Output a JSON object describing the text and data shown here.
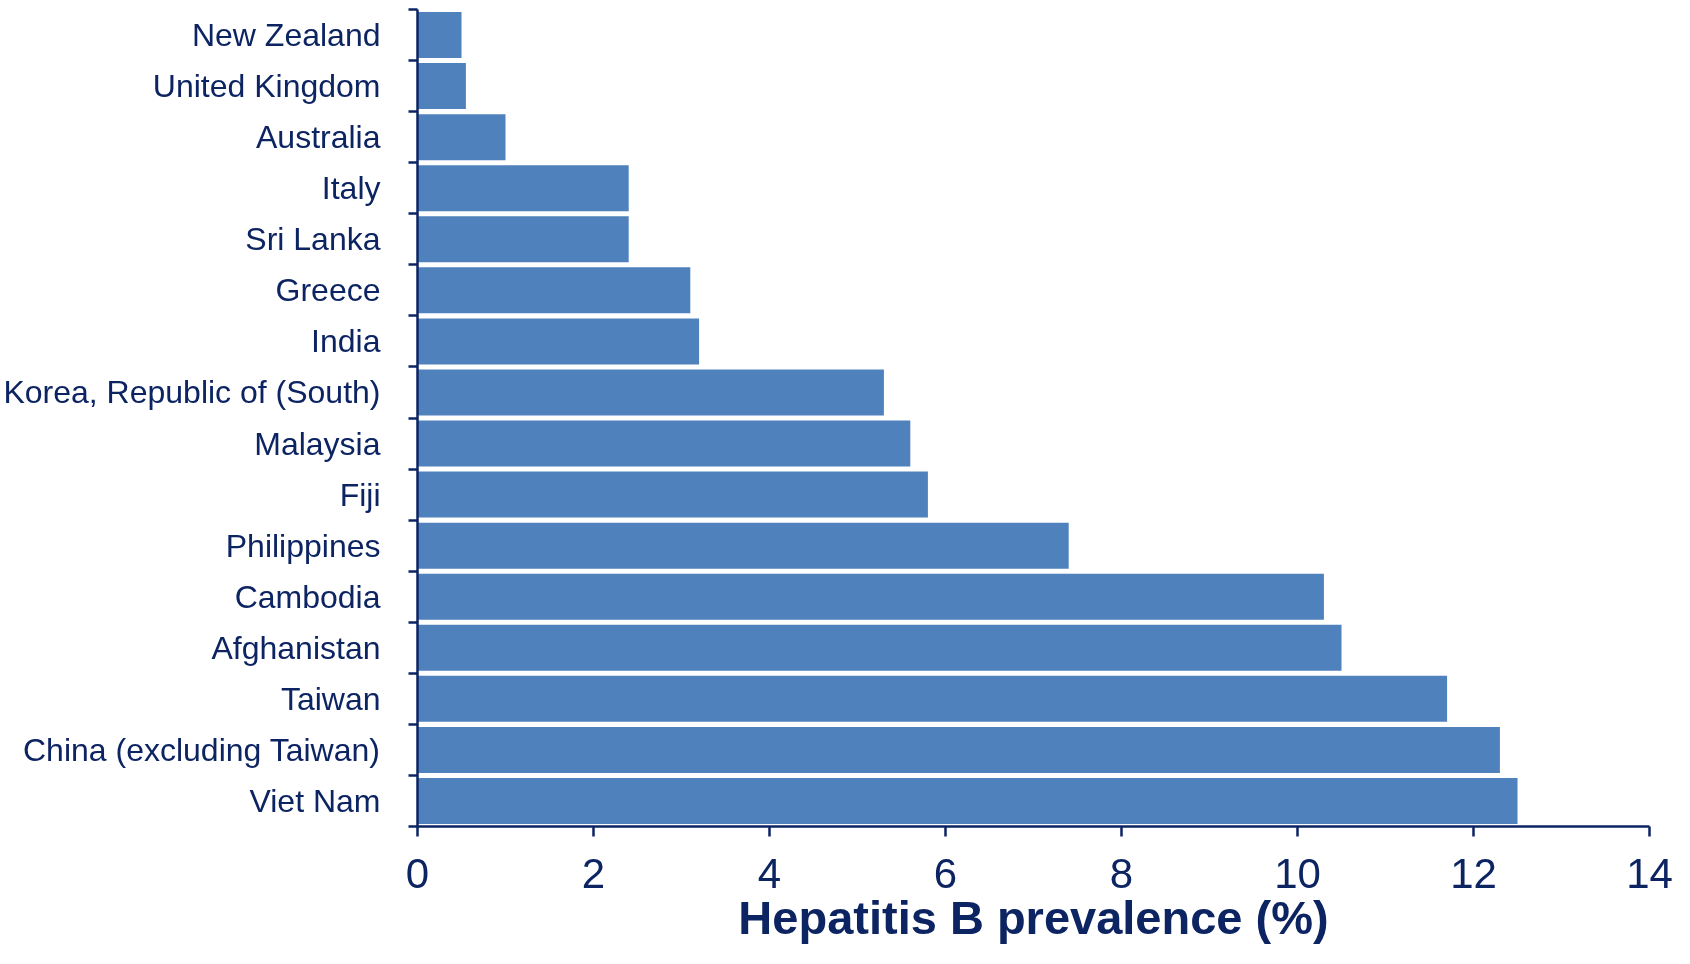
{
  "chart_data": {
    "type": "bar",
    "orientation": "horizontal",
    "xlabel": "Hepatitis B prevalence (%)",
    "categories": [
      "New Zealand",
      "United Kingdom",
      "Australia",
      "Italy",
      "Sri Lanka",
      "Greece",
      "India",
      "Korea, Republic of (South)",
      "Malaysia",
      "Fiji",
      "Philippines",
      "Cambodia",
      "Afghanistan",
      "Taiwan",
      "China (excluding Taiwan)",
      "Viet Nam"
    ],
    "values": [
      0.5,
      0.55,
      1.0,
      2.4,
      2.4,
      3.1,
      3.2,
      5.3,
      5.6,
      5.8,
      7.4,
      10.3,
      10.5,
      11.7,
      12.3,
      12.5
    ],
    "color": "#4f81bd",
    "xlim": [
      0,
      14
    ],
    "xticks": [
      0,
      2,
      4,
      6,
      8,
      10,
      12,
      14
    ],
    "grid": false
  }
}
